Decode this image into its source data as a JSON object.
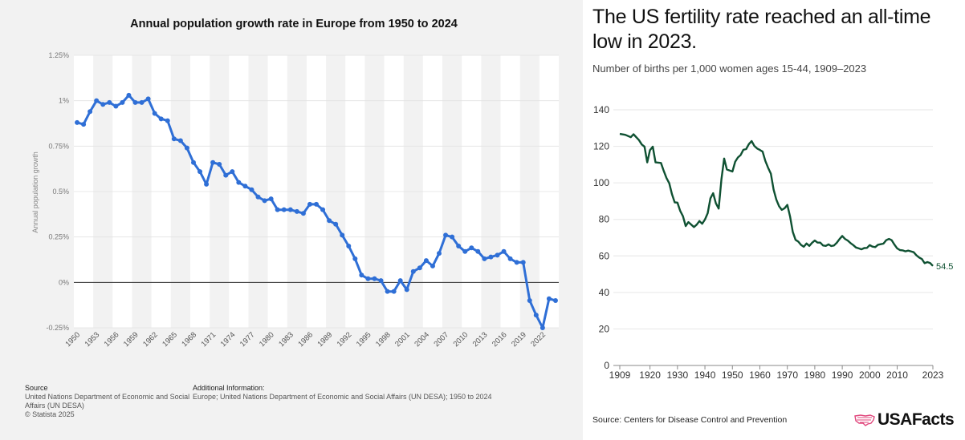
{
  "chart_data": [
    {
      "type": "line",
      "title": "Annual population growth rate in Europe from 1950 to 2024",
      "xlabel": "",
      "ylabel": "Annual population growth",
      "ylim": [
        -0.25,
        1.25
      ],
      "y_ticks": [
        "1.25%",
        "1%",
        "0.75%",
        "0.5%",
        "0.25%",
        "0%",
        "-0.25%"
      ],
      "x_ticks": [
        "1950",
        "1953",
        "1956",
        "1959",
        "1962",
        "1965",
        "1968",
        "1971",
        "1974",
        "1977",
        "1980",
        "1983",
        "1986",
        "1989",
        "1992",
        "1995",
        "1998",
        "2001",
        "2004",
        "2007",
        "2010",
        "2013",
        "2016",
        "2019",
        "2022"
      ],
      "x_start": 1950,
      "series": [
        {
          "name": "Europe",
          "color": "#2f6fd6",
          "values": [
            0.88,
            0.87,
            0.94,
            1.0,
            0.98,
            0.99,
            0.97,
            0.99,
            1.03,
            0.99,
            0.99,
            1.01,
            0.93,
            0.9,
            0.89,
            0.79,
            0.78,
            0.74,
            0.66,
            0.61,
            0.54,
            0.66,
            0.65,
            0.59,
            0.61,
            0.55,
            0.53,
            0.51,
            0.47,
            0.45,
            0.46,
            0.4,
            0.4,
            0.4,
            0.39,
            0.38,
            0.43,
            0.43,
            0.4,
            0.34,
            0.32,
            0.26,
            0.2,
            0.13,
            0.04,
            0.02,
            0.02,
            0.01,
            -0.05,
            -0.05,
            0.01,
            -0.04,
            0.06,
            0.08,
            0.12,
            0.09,
            0.16,
            0.26,
            0.25,
            0.2,
            0.17,
            0.19,
            0.17,
            0.13,
            0.14,
            0.15,
            0.17,
            0.13,
            0.11,
            0.11,
            -0.1,
            -0.18,
            -0.25,
            -0.09,
            -0.1
          ]
        }
      ],
      "source_label": "Source",
      "source_text": [
        "United Nations Department of Economic and Social",
        "Affairs (UN DESA)",
        "© Statista 2025"
      ],
      "additional_label": "Additional Information:",
      "additional_text": "Europe; United Nations Department of Economic and Social Affairs (UN DESA); 1950 to 2024"
    },
    {
      "type": "line",
      "title": "The US fertility rate reached an all-time low in 2023.",
      "subtitle": "Number of births per 1,000 women ages 15-44, 1909–2023",
      "xlabel": "",
      "ylabel": "",
      "ylim": [
        0,
        140
      ],
      "y_ticks": [
        "140",
        "120",
        "100",
        "80",
        "60",
        "40",
        "20",
        "0"
      ],
      "x_ticks": [
        "1909",
        "1920",
        "1930",
        "1940",
        "1950",
        "1960",
        "1970",
        "1980",
        "1990",
        "2000",
        "2010",
        "2023"
      ],
      "end_label": "54.5",
      "series": [
        {
          "name": "Fertility rate",
          "color": "#0f5132",
          "points": [
            [
              1909,
              126.8
            ],
            [
              1911,
              126.3
            ],
            [
              1913,
              125
            ],
            [
              1914,
              126.6
            ],
            [
              1916,
              123.4
            ],
            [
              1917,
              121
            ],
            [
              1918,
              119.8
            ],
            [
              1919,
              111.2
            ],
            [
              1920,
              117.9
            ],
            [
              1921,
              119.8
            ],
            [
              1922,
              111.2
            ],
            [
              1924,
              110.9
            ],
            [
              1925,
              106.6
            ],
            [
              1926,
              102.6
            ],
            [
              1927,
              99.8
            ],
            [
              1928,
              93.8
            ],
            [
              1929,
              89.3
            ],
            [
              1930,
              89.2
            ],
            [
              1931,
              84.6
            ],
            [
              1932,
              81.7
            ],
            [
              1933,
              76.3
            ],
            [
              1934,
              78.5
            ],
            [
              1936,
              75.8
            ],
            [
              1937,
              77.1
            ],
            [
              1938,
              79.1
            ],
            [
              1939,
              77.6
            ],
            [
              1940,
              79.9
            ],
            [
              1941,
              83.4
            ],
            [
              1942,
              91.5
            ],
            [
              1943,
              94.3
            ],
            [
              1944,
              88.8
            ],
            [
              1945,
              85.9
            ],
            [
              1946,
              101.9
            ],
            [
              1947,
              113.3
            ],
            [
              1948,
              107.3
            ],
            [
              1950,
              106.2
            ],
            [
              1951,
              111.5
            ],
            [
              1952,
              113.9
            ],
            [
              1953,
              115.2
            ],
            [
              1954,
              118.1
            ],
            [
              1955,
              118.5
            ],
            [
              1956,
              121.2
            ],
            [
              1957,
              122.9
            ],
            [
              1958,
              120.2
            ],
            [
              1959,
              118.8
            ],
            [
              1960,
              118
            ],
            [
              1961,
              117.1
            ],
            [
              1962,
              112
            ],
            [
              1963,
              108.3
            ],
            [
              1964,
              105
            ],
            [
              1965,
              96.3
            ],
            [
              1966,
              90.8
            ],
            [
              1967,
              87.2
            ],
            [
              1968,
              85.2
            ],
            [
              1969,
              86.1
            ],
            [
              1970,
              87.9
            ],
            [
              1971,
              81.6
            ],
            [
              1972,
              73.1
            ],
            [
              1973,
              68.8
            ],
            [
              1974,
              67.8
            ],
            [
              1975,
              66
            ],
            [
              1976,
              65
            ],
            [
              1977,
              66.8
            ],
            [
              1978,
              65.5
            ],
            [
              1979,
              67.2
            ],
            [
              1980,
              68.4
            ],
            [
              1981,
              67.3
            ],
            [
              1982,
              67.3
            ],
            [
              1983,
              65.7
            ],
            [
              1984,
              65.5
            ],
            [
              1985,
              66.3
            ],
            [
              1986,
              65.4
            ],
            [
              1987,
              65.7
            ],
            [
              1988,
              67.2
            ],
            [
              1989,
              69.2
            ],
            [
              1990,
              70.9
            ],
            [
              1991,
              69.3
            ],
            [
              1992,
              68.4
            ],
            [
              1993,
              67
            ],
            [
              1994,
              65.9
            ],
            [
              1995,
              64.6
            ],
            [
              1996,
              64.1
            ],
            [
              1997,
              63.6
            ],
            [
              1998,
              64.3
            ],
            [
              1999,
              64.4
            ],
            [
              2000,
              65.9
            ],
            [
              2001,
              65.1
            ],
            [
              2002,
              64.8
            ],
            [
              2003,
              66.1
            ],
            [
              2004,
              66.4
            ],
            [
              2005,
              66.7
            ],
            [
              2006,
              68.6
            ],
            [
              2007,
              69.3
            ],
            [
              2008,
              68.6
            ],
            [
              2009,
              66.2
            ],
            [
              2010,
              64.1
            ],
            [
              2011,
              63.2
            ],
            [
              2012,
              63
            ],
            [
              2013,
              62.5
            ],
            [
              2014,
              62.9
            ],
            [
              2015,
              62.5
            ],
            [
              2016,
              62
            ],
            [
              2017,
              60.3
            ],
            [
              2018,
              59.1
            ],
            [
              2019,
              58.3
            ],
            [
              2020,
              56
            ],
            [
              2021,
              56.6
            ],
            [
              2022,
              56.1
            ],
            [
              2023,
              54.5
            ]
          ]
        }
      ],
      "source_text": "Source: Centers for Disease Control and Prevention",
      "brand": "USAFacts"
    }
  ]
}
